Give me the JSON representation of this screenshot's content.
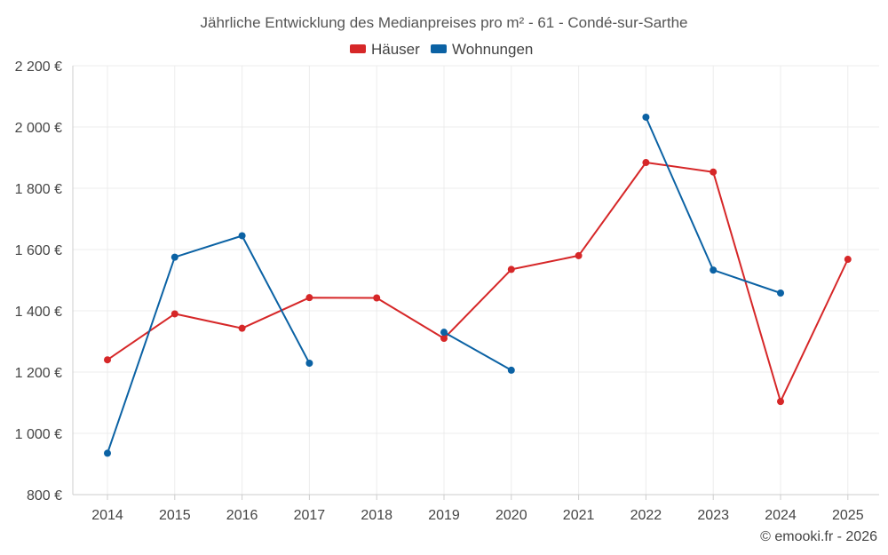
{
  "chart_data": {
    "type": "line",
    "title": "Jährliche Entwicklung des Medianpreises pro m² - 61 - Condé-sur-Sarthe",
    "categories": [
      "2014",
      "2015",
      "2016",
      "2017",
      "2018",
      "2019",
      "2020",
      "2021",
      "2022",
      "2023",
      "2024",
      "2025"
    ],
    "ylim": [
      800,
      2200
    ],
    "yticks": [
      800,
      1000,
      1200,
      1400,
      1600,
      1800,
      2000,
      2200
    ],
    "ytick_labels": [
      "800 €",
      "1 000 €",
      "1 200 €",
      "1 400 €",
      "1 600 €",
      "1 800 €",
      "2 000 €",
      "2 200 €"
    ],
    "xlabel": "",
    "ylabel": "",
    "grid": true,
    "legend_position": "top-center",
    "series": [
      {
        "name": "Häuser",
        "color": "#d62728",
        "values": [
          1240,
          1390,
          1343,
          1443,
          1442,
          1310,
          1535,
          1580,
          1884,
          1853,
          1104,
          1568
        ]
      },
      {
        "name": "Wohnungen",
        "color": "#0b62a4",
        "values": [
          935,
          1575,
          1645,
          1229,
          null,
          1330,
          1206,
          null,
          2032,
          1533,
          1458,
          null
        ]
      }
    ]
  },
  "footer": {
    "credit": "© emooki.fr - 2026"
  }
}
